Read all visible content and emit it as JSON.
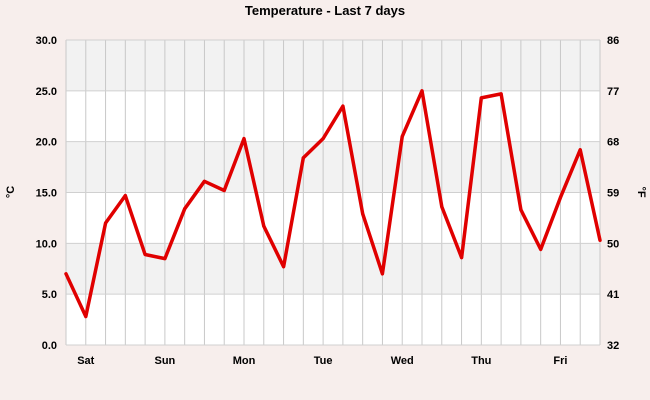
{
  "chart_data": {
    "type": "line",
    "title": "Temperature - Last 7 days",
    "ylabel_left": "°C",
    "ylabel_right": "°F",
    "ylim_left": [
      0,
      30
    ],
    "ylim_right": [
      32,
      86
    ],
    "yticks_left": [
      "0.0",
      "5.0",
      "10.0",
      "15.0",
      "20.0",
      "25.0",
      "30.0"
    ],
    "yticks_right": [
      "32",
      "41",
      "50",
      "59",
      "68",
      "77",
      "86"
    ],
    "x_tick_labels": [
      "Sat",
      "Sun",
      "Mon",
      "Tue",
      "Wed",
      "Thu",
      "Fri"
    ],
    "grid": true,
    "series": [
      {
        "color": "#e00000",
        "values": [
          7.0,
          2.8,
          12.0,
          14.7,
          8.9,
          8.5,
          13.4,
          16.1,
          15.2,
          20.3,
          11.7,
          7.7,
          18.4,
          20.3,
          23.5,
          12.9,
          7.0,
          20.5,
          25.0,
          13.6,
          8.6,
          24.3,
          24.7,
          13.3,
          9.4,
          14.5,
          19.2,
          10.3
        ]
      }
    ]
  }
}
